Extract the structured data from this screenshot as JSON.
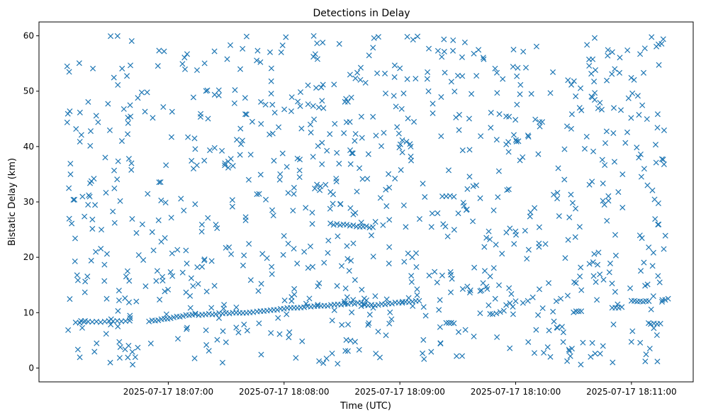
{
  "chart_data": {
    "type": "scatter",
    "title": "Detections in Delay",
    "xlabel": "Time (UTC)",
    "ylabel": "Bistatic Delay (km)",
    "xlim": [
      "2025-07-17 18:05:53",
      "2025-07-17 18:11:32"
    ],
    "ylim": [
      -2.5,
      62.5
    ],
    "x_ticks": [
      "2025-07-17 18:07:00",
      "2025-07-17 18:08:00",
      "2025-07-17 18:09:00",
      "2025-07-17 18:10:00",
      "2025-07-17 18:11:00"
    ],
    "y_ticks": [
      0,
      10,
      20,
      30,
      40,
      50,
      60
    ],
    "marker": "x",
    "color": "#1f77b4",
    "grid": false,
    "series": [
      {
        "tracks": [
          {
            "from": [
              "2025-07-17 18:06:12",
              8.2
            ],
            "to": [
              "2025-07-17 18:06:40",
              8.5
            ],
            "points": 14
          },
          {
            "from": [
              "2025-07-17 18:06:50",
              8.4
            ],
            "to": [
              "2025-07-17 18:07:14",
              9.8
            ],
            "points": 16
          },
          {
            "from": [
              "2025-07-17 18:07:14",
              9.6
            ],
            "to": [
              "2025-07-17 18:07:44",
              10.1
            ],
            "points": 18
          },
          {
            "from": [
              "2025-07-17 18:07:46",
              10.3
            ],
            "to": [
              "2025-07-17 18:08:40",
              11.8
            ],
            "points": 32
          },
          {
            "from": [
              "2025-07-17 18:08:40",
              11.2
            ],
            "to": [
              "2025-07-17 18:09:10",
              12.1
            ],
            "points": 18
          },
          {
            "from": [
              "2025-07-17 18:08:24",
              26.0
            ],
            "to": [
              "2025-07-17 18:08:46",
              25.4
            ],
            "points": 14
          },
          {
            "from": [
              "2025-07-17 18:09:22",
              31.1
            ],
            "to": [
              "2025-07-17 18:09:28",
              31.0
            ],
            "points": 4
          },
          {
            "from": [
              "2025-07-17 18:09:24",
              8.2
            ],
            "to": [
              "2025-07-17 18:09:28",
              8.1
            ],
            "points": 4
          },
          {
            "from": [
              "2025-07-17 18:09:48",
              9.8
            ],
            "to": [
              "2025-07-17 18:09:52",
              10.0
            ],
            "points": 3
          },
          {
            "from": [
              "2025-07-17 18:10:30",
              10.1
            ],
            "to": [
              "2025-07-17 18:10:34",
              10.2
            ],
            "points": 4
          },
          {
            "from": [
              "2025-07-17 18:10:50",
              10.8
            ],
            "to": [
              "2025-07-17 18:10:55",
              10.9
            ],
            "points": 4
          },
          {
            "from": [
              "2025-07-17 18:11:00",
              12.1
            ],
            "to": [
              "2025-07-17 18:11:09",
              12.1
            ],
            "points": 7
          },
          {
            "from": [
              "2025-07-17 18:11:10",
              8.0
            ],
            "to": [
              "2025-07-17 18:11:15",
              8.0
            ],
            "points": 4
          },
          {
            "from": [
              "2025-07-17 18:11:16",
              12.3
            ],
            "to": [
              "2025-07-17 18:11:19",
              12.4
            ],
            "points": 3
          }
        ],
        "clutter": {
          "x_range": [
            "2025-07-17 18:06:07",
            "2025-07-17 18:11:18"
          ],
          "y_range": [
            0.5,
            60
          ],
          "points": 900
        }
      }
    ]
  }
}
